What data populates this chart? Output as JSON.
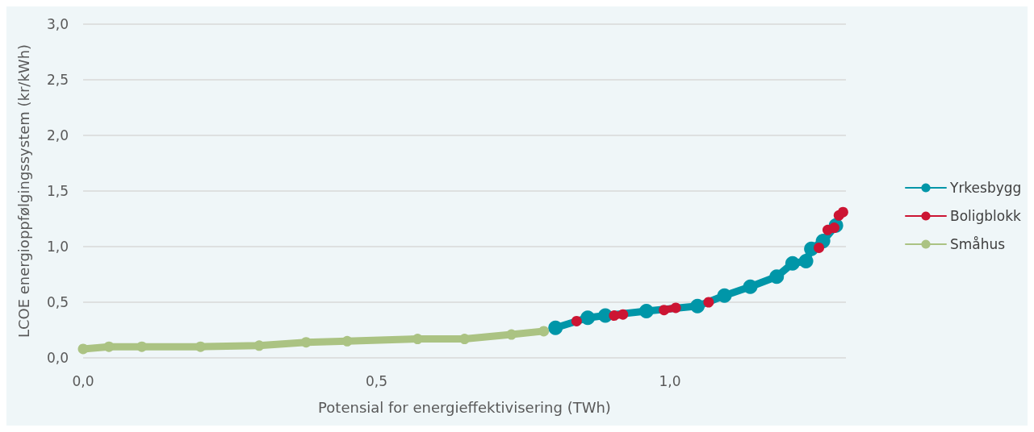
{
  "chart_data": {
    "type": "line",
    "xlabel": "Potensial for energieffektivisering (TWh)",
    "ylabel": "LCOE energioppfølgingssystem (kr/kWh)",
    "xlim": [
      0,
      1.3
    ],
    "xticks": [
      {
        "value": 0,
        "label": "0,0"
      },
      {
        "value": 0.5,
        "label": "0,5"
      },
      {
        "value": 1,
        "label": "1,0"
      }
    ],
    "ylim": [
      0,
      3
    ],
    "yticks": [
      {
        "value": 0,
        "label": "0,0"
      },
      {
        "value": 0.5,
        "label": "0,5"
      },
      {
        "value": 1,
        "label": "1,0"
      },
      {
        "value": 1.5,
        "label": "1,5"
      },
      {
        "value": 2,
        "label": "2,0"
      },
      {
        "value": 2.5,
        "label": "2,5"
      },
      {
        "value": 3,
        "label": "3,0"
      }
    ],
    "grid": "y",
    "legend": "right",
    "marker": "circle",
    "line_style": "solid",
    "series": [
      {
        "name": "Yrkesbygg",
        "color": "#0096a8",
        "x": [
          0.805,
          0.86,
          0.89,
          0.96,
          1.047,
          1.093,
          1.137,
          1.182,
          1.209,
          1.232,
          1.241,
          1.261,
          1.283
        ],
        "values": [
          0.27,
          0.36,
          0.38,
          0.42,
          0.465,
          0.56,
          0.64,
          0.73,
          0.85,
          0.87,
          0.98,
          1.05,
          1.19
        ]
      },
      {
        "name": "Boligblokk",
        "color": "#cc1533",
        "x": [
          0.841,
          0.87,
          0.905,
          0.92,
          0.95,
          0.99,
          1.01,
          1.04,
          1.066,
          1.1,
          1.254,
          1.26,
          1.269,
          1.28,
          1.285,
          1.288,
          1.295
        ],
        "values": [
          0.33,
          null,
          0.38,
          0.39,
          null,
          0.43,
          0.45,
          null,
          0.5,
          null,
          0.99,
          null,
          1.15,
          1.17,
          null,
          1.28,
          1.31
        ]
      },
      {
        "name": "Småhus",
        "color": "#abc383",
        "x": [
          0,
          0.044,
          0.1,
          0.2,
          0.3,
          0.38,
          0.45,
          0.57,
          0.65,
          0.73,
          0.785
        ],
        "values": [
          0.08,
          0.1,
          0.1,
          0.1,
          0.11,
          0.14,
          0.15,
          0.17,
          0.17,
          0.21,
          0.24
        ]
      }
    ]
  }
}
